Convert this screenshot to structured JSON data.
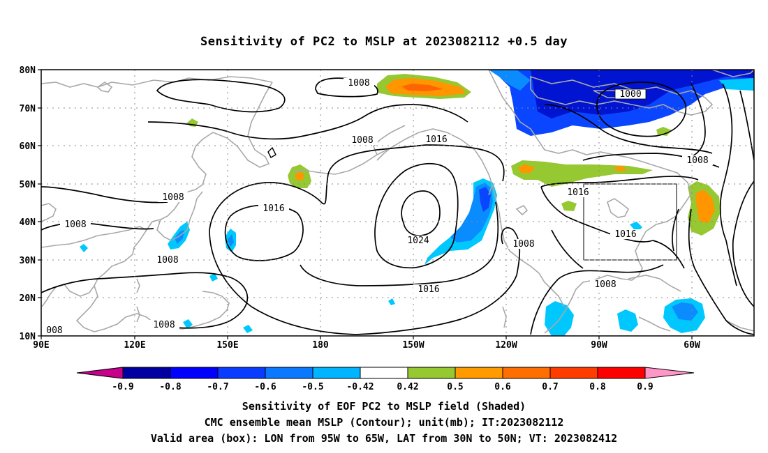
{
  "title": "Sensitivity of PC2 to MSLP at 2023082112 +0.5 day",
  "map": {
    "lat_labels": [
      "80N",
      "70N",
      "60N",
      "50N",
      "40N",
      "30N",
      "20N",
      "10N"
    ],
    "lon_labels": [
      "90E",
      "120E",
      "150E",
      "180",
      "150W",
      "120W",
      "90W",
      "60W"
    ],
    "extent": {
      "lon_min": 90,
      "lon_max": 310,
      "lat_min": 10,
      "lat_max": 80
    },
    "validation_box": {
      "lon_from": "95W",
      "lon_to": "65W",
      "lat_from": "30N",
      "lat_to": "50N"
    },
    "contour_labels": [
      "1008",
      "1000",
      "1008",
      "1016",
      "1008",
      "1008",
      "1016",
      "1008",
      "1024",
      "1008",
      "1016",
      "1016",
      "1016",
      "1008",
      "1008",
      "1008",
      "008"
    ],
    "colors": {
      "coast": "#a8a8a8",
      "contour": "#000000",
      "neg_light": "#00c8ff",
      "neg_mid": "#0a8cff",
      "neg_dark": "#0a46ff",
      "neg_deep": "#0014d2",
      "pos_green": "#96c832",
      "pos_orange": "#ff9600",
      "pos_dark_orange": "#ff6400"
    }
  },
  "colorbar": {
    "tick_labels": [
      "-0.9",
      "-0.8",
      "-0.7",
      "-0.6",
      "-0.5",
      "-0.42",
      "0.42",
      "0.5",
      "0.6",
      "0.7",
      "0.8",
      "0.9"
    ],
    "colors": [
      "#c8008c",
      "#0000a0",
      "#0000ff",
      "#0a3cff",
      "#0a78ff",
      "#00b4ff",
      "#ffffff",
      "#96c832",
      "#ff9b00",
      "#ff6e00",
      "#ff3c00",
      "#ff0000",
      "#ff96c8"
    ]
  },
  "captions": {
    "line1": "Sensitivity of EOF PC2 to MSLP field (Shaded)",
    "line2": "CMC ensemble mean MSLP (Contour); unit(mb); IT:2023082112",
    "line3": "Valid area (box): LON from 95W to 65W, LAT from 30N to 50N; VT: 2023082412"
  }
}
